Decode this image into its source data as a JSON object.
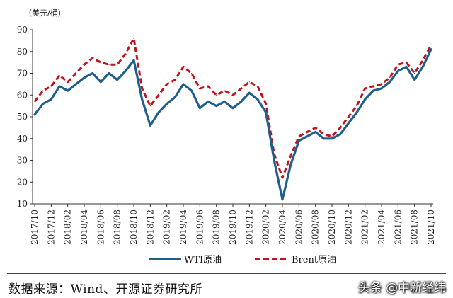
{
  "chart_data": {
    "type": "line",
    "unit_label": "（美元/桶）",
    "ylim": [
      10,
      90
    ],
    "yticks": [
      10,
      20,
      30,
      40,
      50,
      60,
      70,
      80,
      90
    ],
    "x_tick_labels": [
      "2017/10",
      "2017/12",
      "2018/02",
      "2018/04",
      "2018/06",
      "2018/08",
      "2018/10",
      "2018/12",
      "2019/02",
      "2019/04",
      "2019/06",
      "2019/08",
      "2019/10",
      "2019/12",
      "2020/02",
      "2020/04",
      "2020/06",
      "2020/08",
      "2020/10",
      "2020/12",
      "2021/02",
      "2021/04",
      "2021/06",
      "2021/08",
      "2021/10"
    ],
    "legend_position": "bottom",
    "grid": false,
    "series": [
      {
        "name": "WTI原油",
        "color": "#1f5f8b",
        "style": "solid",
        "x": [
          "2017/10",
          "2017/11",
          "2017/12",
          "2018/01",
          "2018/02",
          "2018/03",
          "2018/04",
          "2018/05",
          "2018/06",
          "2018/07",
          "2018/08",
          "2018/09",
          "2018/10",
          "2018/11",
          "2018/12",
          "2019/01",
          "2019/02",
          "2019/03",
          "2019/04",
          "2019/05",
          "2019/06",
          "2019/07",
          "2019/08",
          "2019/09",
          "2019/10",
          "2019/11",
          "2019/12",
          "2020/01",
          "2020/02",
          "2020/03",
          "2020/04",
          "2020/05",
          "2020/06",
          "2020/07",
          "2020/08",
          "2020/09",
          "2020/10",
          "2020/11",
          "2020/12",
          "2021/01",
          "2021/02",
          "2021/03",
          "2021/04",
          "2021/05",
          "2021/06",
          "2021/07",
          "2021/08",
          "2021/09",
          "2021/10"
        ],
        "values": [
          51,
          56,
          58,
          64,
          62,
          65,
          68,
          70,
          66,
          70,
          67,
          71,
          76,
          58,
          46,
          52,
          56,
          59,
          65,
          62,
          54,
          57,
          55,
          57,
          54,
          57,
          61,
          58,
          52,
          30,
          12,
          28,
          39,
          41,
          43,
          40,
          40,
          42,
          47,
          52,
          58,
          62,
          63,
          66,
          71,
          73,
          67,
          73,
          81
        ]
      },
      {
        "name": "Brent原油",
        "color": "#c0141c",
        "style": "dashed",
        "x": [
          "2017/10",
          "2017/11",
          "2017/12",
          "2018/01",
          "2018/02",
          "2018/03",
          "2018/04",
          "2018/05",
          "2018/06",
          "2018/07",
          "2018/08",
          "2018/09",
          "2018/10",
          "2018/11",
          "2018/12",
          "2019/01",
          "2019/02",
          "2019/03",
          "2019/04",
          "2019/05",
          "2019/06",
          "2019/07",
          "2019/08",
          "2019/09",
          "2019/10",
          "2019/11",
          "2019/12",
          "2020/01",
          "2020/02",
          "2020/03",
          "2020/04",
          "2020/05",
          "2020/06",
          "2020/07",
          "2020/08",
          "2020/09",
          "2020/10",
          "2020/11",
          "2020/12",
          "2021/01",
          "2021/02",
          "2021/03",
          "2021/04",
          "2021/05",
          "2021/06",
          "2021/07",
          "2021/08",
          "2021/09",
          "2021/10"
        ],
        "values": [
          57,
          62,
          64,
          69,
          66,
          70,
          74,
          77,
          75,
          74,
          74,
          79,
          86,
          63,
          55,
          60,
          65,
          67,
          73,
          70,
          63,
          64,
          60,
          62,
          60,
          63,
          66,
          64,
          56,
          33,
          22,
          32,
          41,
          43,
          45,
          42,
          41,
          45,
          50,
          55,
          63,
          64,
          65,
          68,
          74,
          75,
          70,
          76,
          83
        ]
      }
    ]
  },
  "source_text": "数据来源：Wind、开源证券研究所",
  "watermark_text": "头条 @中新经纬"
}
